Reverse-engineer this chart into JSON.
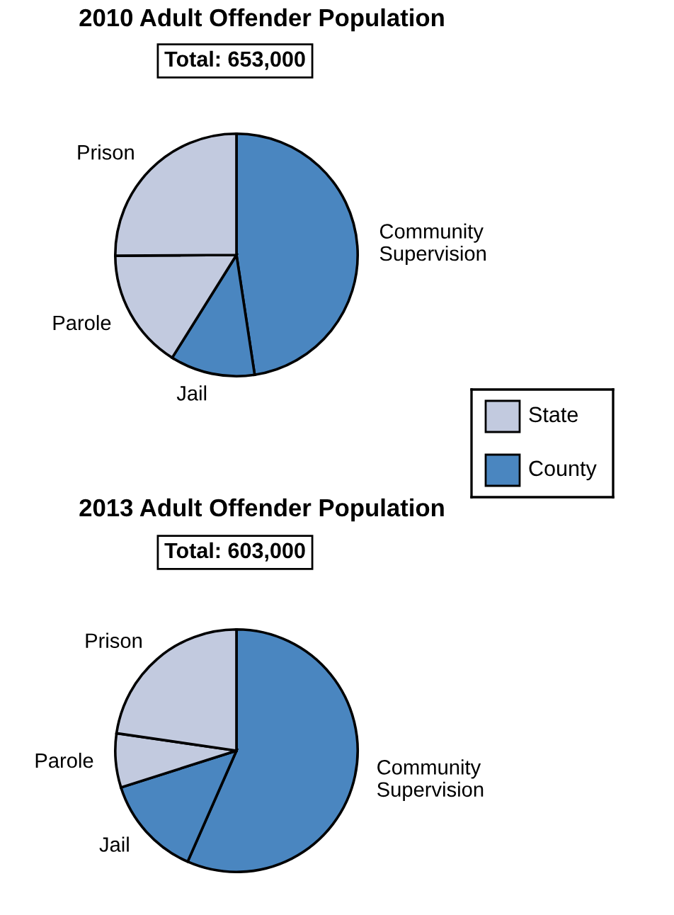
{
  "chart_data": [
    {
      "type": "pie",
      "title": "2010 Adult Offender Population",
      "annotations": [
        "Total: 653,000"
      ],
      "categories": [
        "Community\nSupervision",
        "Jail",
        "Parole",
        "Prison"
      ],
      "values": [
        47.6,
        11.3,
        16.0,
        25.1
      ],
      "colors": [
        "#4a86c0",
        "#4a86c0",
        "#c2cadf",
        "#c2cadf"
      ]
    },
    {
      "type": "other",
      "annotations": [
        "State",
        "County"
      ],
      "colors": [
        "#c2cadf",
        "#4a86c0"
      ]
    },
    {
      "type": "pie",
      "title": "2013 Adult Offender Population",
      "annotations": [
        "Total: 603,000"
      ],
      "categories": [
        "Community\nSupervision",
        "Jail",
        "Parole",
        "Prison"
      ],
      "values": [
        56.6,
        13.5,
        7.2,
        22.7
      ],
      "colors": [
        "#4a86c0",
        "#4a86c0",
        "#c2cadf",
        "#c2cadf"
      ]
    }
  ]
}
